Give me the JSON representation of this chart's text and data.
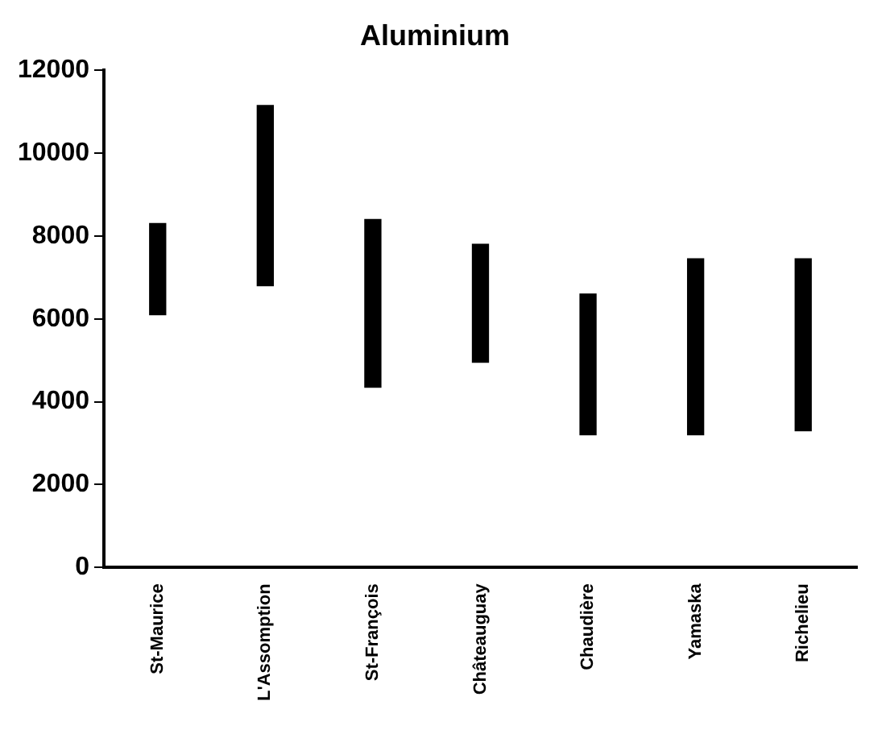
{
  "chart_data": {
    "type": "bar",
    "title": "Aluminium",
    "categories": [
      "St-Maurice",
      "L'Assomption",
      "St-François",
      "Châteauguay",
      "Chaudière",
      "Yamaska",
      "Richelieu"
    ],
    "base": [
      6100,
      6800,
      4350,
      4950,
      3200,
      3200,
      3300
    ],
    "values": [
      2200,
      4350,
      4050,
      2850,
      3400,
      4250,
      4150
    ],
    "color": "#000000",
    "ylim": [
      0,
      12000
    ],
    "yticks": [
      0,
      2000,
      4000,
      6000,
      8000,
      10000,
      12000
    ],
    "grid": false,
    "legend": false
  }
}
